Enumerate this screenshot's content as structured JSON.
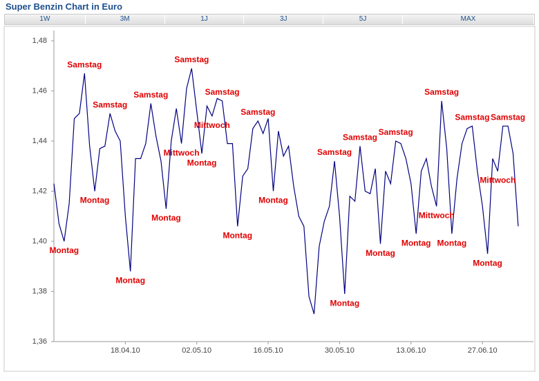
{
  "title": "Super Benzin Chart in Euro",
  "tabs": [
    "1W",
    "3M",
    "1J",
    "3J",
    "5J",
    "MAX"
  ],
  "chart_data": {
    "type": "line",
    "x": [
      "04.04.10",
      "05.04.10",
      "06.04.10",
      "07.04.10",
      "08.04.10",
      "09.04.10",
      "10.04.10",
      "11.04.10",
      "12.04.10",
      "13.04.10",
      "14.04.10",
      "15.04.10",
      "16.04.10",
      "17.04.10",
      "18.04.10",
      "19.04.10",
      "20.04.10",
      "21.04.10",
      "22.04.10",
      "23.04.10",
      "24.04.10",
      "25.04.10",
      "26.04.10",
      "27.04.10",
      "28.04.10",
      "29.04.10",
      "30.04.10",
      "01.05.10",
      "02.05.10",
      "03.05.10",
      "04.05.10",
      "05.05.10",
      "06.05.10",
      "07.05.10",
      "08.05.10",
      "09.05.10",
      "10.05.10",
      "11.05.10",
      "12.05.10",
      "13.05.10",
      "14.05.10",
      "15.05.10",
      "16.05.10",
      "17.05.10",
      "18.05.10",
      "19.05.10",
      "20.05.10",
      "21.05.10",
      "22.05.10",
      "23.05.10",
      "24.05.10",
      "25.05.10",
      "26.05.10",
      "27.05.10",
      "28.05.10",
      "29.05.10",
      "30.05.10",
      "31.05.10",
      "01.06.10",
      "02.06.10",
      "03.06.10",
      "04.06.10",
      "05.06.10",
      "06.06.10",
      "07.06.10",
      "08.06.10",
      "09.06.10",
      "10.06.10",
      "11.06.10",
      "12.06.10",
      "13.06.10",
      "14.06.10",
      "15.06.10",
      "16.06.10",
      "17.06.10",
      "18.06.10",
      "19.06.10",
      "20.06.10",
      "21.06.10",
      "22.06.10",
      "23.06.10",
      "24.06.10",
      "25.06.10",
      "26.06.10",
      "27.06.10",
      "28.06.10",
      "29.06.10",
      "30.06.10",
      "01.07.10",
      "02.07.10",
      "03.07.10",
      "04.07.10"
    ],
    "series": [
      {
        "color": "#000080",
        "values": [
          1.423,
          1.407,
          1.4,
          1.415,
          1.449,
          1.451,
          1.467,
          1.438,
          1.42,
          1.437,
          1.438,
          1.451,
          1.444,
          1.44,
          1.41,
          1.388,
          1.433,
          1.433,
          1.439,
          1.455,
          1.442,
          1.432,
          1.413,
          1.44,
          1.453,
          1.439,
          1.461,
          1.469,
          1.452,
          1.435,
          1.454,
          1.45,
          1.457,
          1.456,
          1.439,
          1.439,
          1.406,
          1.426,
          1.429,
          1.445,
          1.448,
          1.443,
          1.449,
          1.42,
          1.444,
          1.434,
          1.438,
          1.422,
          1.41,
          1.406,
          1.378,
          1.371,
          1.398,
          1.408,
          1.414,
          1.432,
          1.41,
          1.379,
          1.418,
          1.416,
          1.438,
          1.42,
          1.419,
          1.429,
          1.399,
          1.428,
          1.423,
          1.44,
          1.439,
          1.433,
          1.423,
          1.403,
          1.428,
          1.433,
          1.422,
          1.414,
          1.456,
          1.437,
          1.403,
          1.425,
          1.439,
          1.445,
          1.446,
          1.428,
          1.414,
          1.395,
          1.433,
          1.428,
          1.446,
          1.446,
          1.435,
          1.406
        ]
      }
    ],
    "annotations": [
      {
        "text": "Montag",
        "x": "06.04.10"
      },
      {
        "text": "Samstag",
        "x": "10.04.10"
      },
      {
        "text": "Montag",
        "x": "12.04.10"
      },
      {
        "text": "Samstag",
        "x": "15.04.10"
      },
      {
        "text": "Montag",
        "x": "19.04.10"
      },
      {
        "text": "Samstag",
        "x": "23.04.10"
      },
      {
        "text": "Montag",
        "x": "26.04.10"
      },
      {
        "text": "Mittwoch",
        "x": "29.04.10"
      },
      {
        "text": "Samstag",
        "x": "01.05.10"
      },
      {
        "text": "Montag",
        "x": "03.05.10"
      },
      {
        "text": "Mittwoch",
        "x": "05.05.10"
      },
      {
        "text": "Samstag",
        "x": "07.05.10"
      },
      {
        "text": "Montag",
        "x": "10.05.10"
      },
      {
        "text": "Samstag",
        "x": "14.05.10"
      },
      {
        "text": "Montag",
        "x": "17.05.10"
      },
      {
        "text": "Samstag",
        "x": "29.05.10"
      },
      {
        "text": "Montag",
        "x": "31.05.10"
      },
      {
        "text": "Samstag",
        "x": "03.06.10"
      },
      {
        "text": "Montag",
        "x": "07.06.10"
      },
      {
        "text": "Samstag",
        "x": "10.06.10"
      },
      {
        "text": "Montag",
        "x": "14.06.10"
      },
      {
        "text": "Mittwoch",
        "x": "18.06.10"
      },
      {
        "text": "Samstag",
        "x": "19.06.10"
      },
      {
        "text": "Montag",
        "x": "21.06.10"
      },
      {
        "text": "Samstag",
        "x": "25.06.10"
      },
      {
        "text": "Montag",
        "x": "28.06.10"
      },
      {
        "text": "Mittwoch",
        "x": "30.06.10"
      },
      {
        "text": "Samstag",
        "x": "02.07.10"
      }
    ],
    "xlim": [
      "04.04.10",
      "07.07.10"
    ],
    "xticks": [
      "18.04.10",
      "02.05.10",
      "16.05.10",
      "30.05.10",
      "13.06.10",
      "27.06.10"
    ],
    "ylim": [
      1.36,
      1.48
    ],
    "yticks": [
      {
        "value": 1.36,
        "label": "1,36"
      },
      {
        "value": 1.38,
        "label": "1,38"
      },
      {
        "value": 1.4,
        "label": "1,40"
      },
      {
        "value": 1.42,
        "label": "1,42"
      },
      {
        "value": 1.44,
        "label": "1,44"
      },
      {
        "value": 1.46,
        "label": "1,46"
      },
      {
        "value": 1.48,
        "label": "1,48"
      }
    ],
    "grid": false
  }
}
